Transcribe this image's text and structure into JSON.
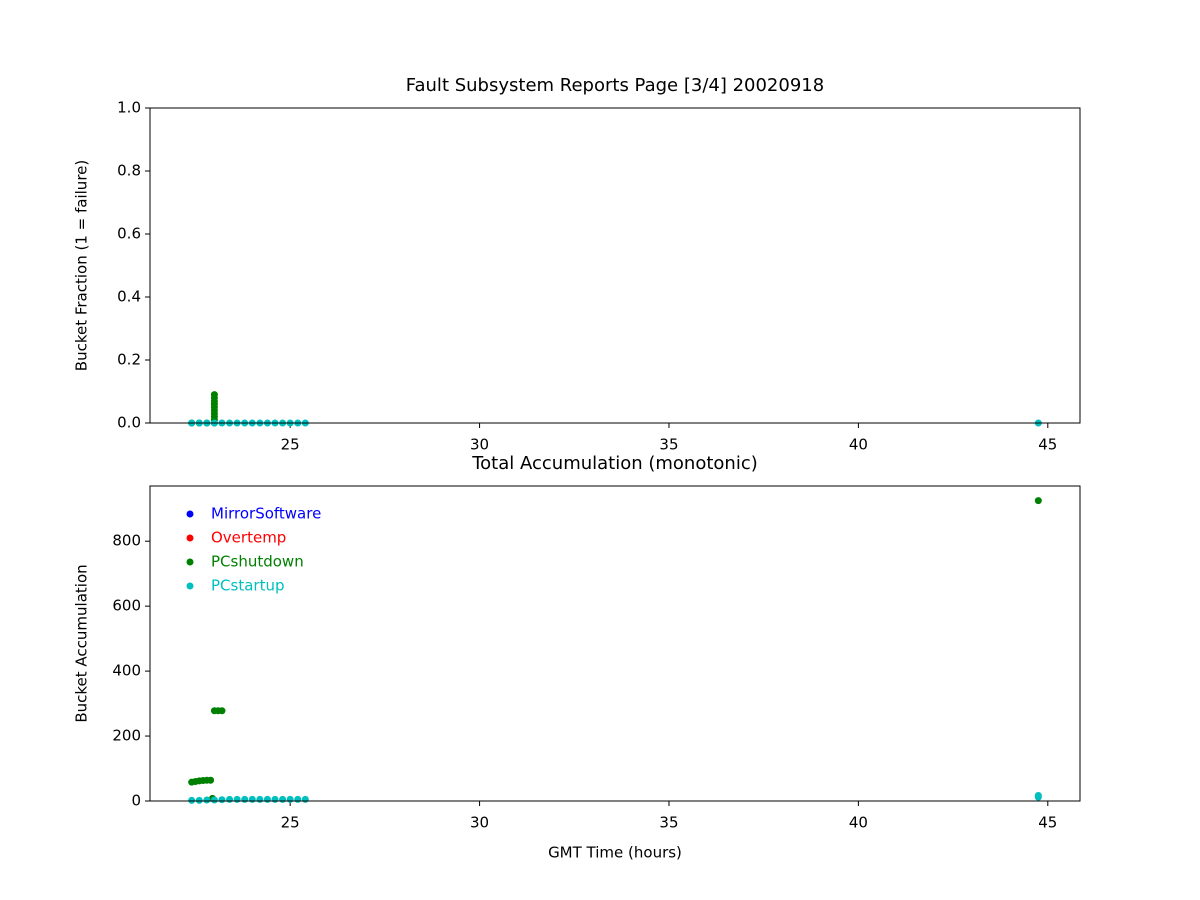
{
  "chart_data": [
    {
      "type": "scatter",
      "title": "Fault Subsystem Reports Page [3/4] 20020918",
      "y_label": "Bucket Fraction (1 = failure)",
      "xlim": [
        21.3,
        45.85
      ],
      "xticks": [
        25,
        30,
        35,
        40,
        45
      ],
      "ylim": [
        0,
        1
      ],
      "yticks": [
        {
          "value": 0,
          "label": "0.0"
        },
        {
          "value": 0.2,
          "label": "0.2"
        },
        {
          "value": 0.4,
          "label": "0.4"
        },
        {
          "value": 0.6,
          "label": "0.6"
        },
        {
          "value": 0.8,
          "label": "0.8"
        },
        {
          "value": 1,
          "label": "1.0"
        }
      ],
      "series": [
        {
          "color": "#008000",
          "x": [
            22.4,
            22.6,
            22.8,
            23.0,
            23.0,
            23.0,
            23.0,
            23.0,
            23.0,
            23.0,
            23.0,
            23.0,
            23.0
          ],
          "values": [
            0,
            0,
            0,
            0,
            0.01,
            0.02,
            0.03,
            0.04,
            0.05,
            0.06,
            0.07,
            0.08,
            0.09
          ]
        },
        {
          "color": "#00bfbf",
          "x": [
            22.4,
            22.6,
            22.8,
            23.0,
            23.2,
            23.4,
            23.6,
            23.8,
            24.0,
            24.2,
            24.4,
            24.6,
            24.8,
            25.0,
            25.2,
            25.4,
            44.75
          ],
          "values": [
            0,
            0,
            0,
            0,
            0,
            0,
            0,
            0,
            0,
            0,
            0,
            0,
            0,
            0,
            0,
            0,
            0
          ]
        }
      ]
    },
    {
      "type": "scatter",
      "title": "Total Accumulation (monotonic)",
      "x_label": "GMT Time (hours)",
      "y_label": "Bucket Accumulation",
      "xlim": [
        21.3,
        45.85
      ],
      "xticks": [
        25,
        30,
        35,
        40,
        45
      ],
      "ylim": [
        0,
        970
      ],
      "yticks": [
        0,
        200,
        400,
        600,
        800
      ],
      "legend": "upper left",
      "series": [
        {
          "name": "MirrorSoftware",
          "color": "#0000ff",
          "x": [],
          "values": []
        },
        {
          "name": "Overtemp",
          "color": "#ff0000",
          "x": [],
          "values": []
        },
        {
          "name": "PCshutdown",
          "color": "#008000",
          "x": [
            22.4,
            22.5,
            22.6,
            22.7,
            22.8,
            22.9,
            22.95,
            23.0,
            23.1,
            23.2,
            44.75
          ],
          "values": [
            58,
            60,
            62,
            63,
            64,
            64,
            8,
            278,
            278,
            278,
            925
          ]
        },
        {
          "name": "PCstartup",
          "color": "#00bfbf",
          "x": [
            22.4,
            22.6,
            22.8,
            23.0,
            23.2,
            23.4,
            23.6,
            23.8,
            24.0,
            24.2,
            24.4,
            24.6,
            24.8,
            25.0,
            25.2,
            25.4,
            44.75,
            44.75
          ],
          "values": [
            2,
            2,
            3,
            3,
            4,
            5,
            5,
            5,
            5,
            5,
            5,
            5,
            5,
            5,
            5,
            5,
            12,
            17
          ]
        }
      ]
    }
  ]
}
